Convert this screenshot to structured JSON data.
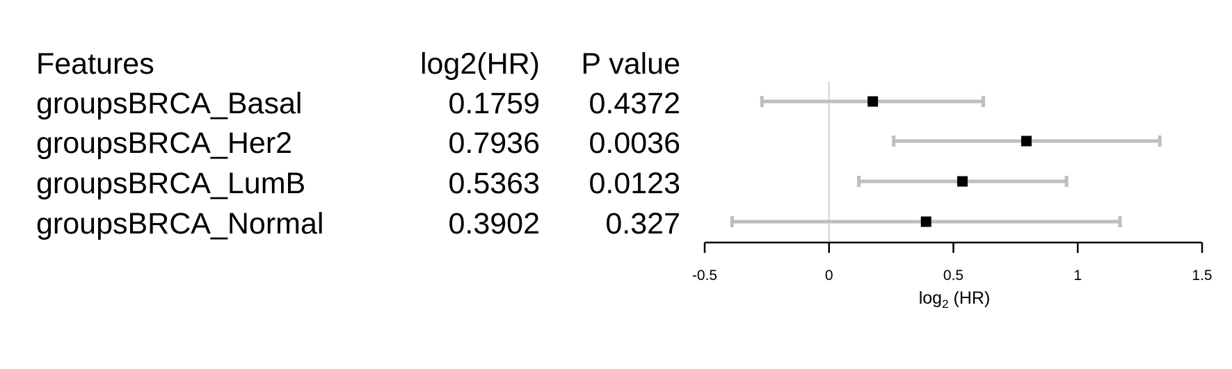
{
  "table": {
    "headers": {
      "feature": "Features",
      "estimate": "log2(HR)",
      "pvalue": "P value"
    },
    "rows": [
      {
        "feature": "groupsBRCA_Basal",
        "estimate": "0.1759",
        "pvalue": "0.4372"
      },
      {
        "feature": "groupsBRCA_Her2",
        "estimate": "0.7936",
        "pvalue": "0.0036"
      },
      {
        "feature": "groupsBRCA_LumB",
        "estimate": "0.5363",
        "pvalue": "0.0123"
      },
      {
        "feature": "groupsBRCA_Normal",
        "estimate": "0.3902",
        "pvalue": "0.327"
      }
    ]
  },
  "chart_data": {
    "type": "forest",
    "title": "",
    "xlabel": {
      "base": "log",
      "subscript": "2",
      "suffix": " (HR)"
    },
    "xlim": [
      -0.5,
      1.5
    ],
    "xticks": [
      -0.5,
      0,
      0.5,
      1,
      1.5
    ],
    "xtick_labels": [
      "-0.5",
      "0",
      "0.5",
      "1",
      "1.5"
    ],
    "reference_line": 0,
    "grid": false,
    "legend": "none",
    "points": [
      {
        "label": "groupsBRCA_Basal",
        "estimate": 0.1759,
        "lower": -0.27,
        "upper": 0.62
      },
      {
        "label": "groupsBRCA_Her2",
        "estimate": 0.7936,
        "lower": 0.26,
        "upper": 1.33
      },
      {
        "label": "groupsBRCA_LumB",
        "estimate": 0.5363,
        "lower": 0.12,
        "upper": 0.955
      },
      {
        "label": "groupsBRCA_Normal",
        "estimate": 0.3902,
        "lower": -0.39,
        "upper": 1.17
      }
    ],
    "colors": {
      "ci": "#bebebe",
      "point": "#000000",
      "reference": "#d3d3d3",
      "axis": "#000000"
    }
  }
}
